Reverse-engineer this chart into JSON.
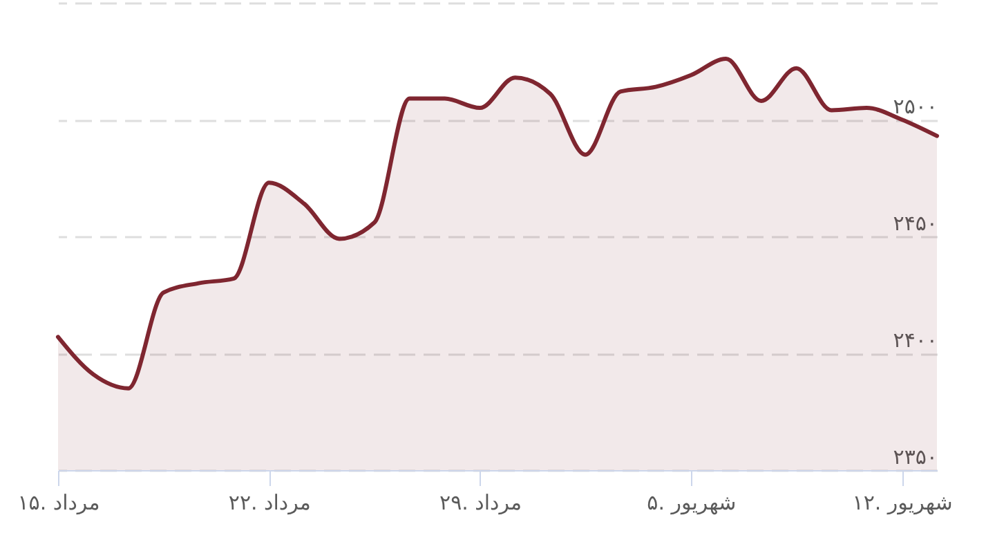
{
  "chart_data": {
    "type": "area",
    "categories": [
      "۱۵. مرداد",
      null,
      null,
      null,
      null,
      null,
      "۲۲. مرداد",
      null,
      null,
      null,
      null,
      null,
      "۲۹. مرداد",
      null,
      null,
      null,
      null,
      null,
      "۵. شهریور",
      null,
      null,
      null,
      null,
      null,
      "۱۲. شهریور",
      null
    ],
    "values": [
      2407,
      2391,
      2385,
      2426,
      2430,
      2432,
      2473,
      2464,
      2449,
      2456,
      2509,
      2509,
      2505,
      2518,
      2511,
      2485,
      2512,
      2514,
      2519,
      2526,
      2508,
      2522,
      2504,
      2505,
      2500,
      2493
    ],
    "color": "#7f2630",
    "ylim": [
      2350,
      2550
    ],
    "yticks": [
      {
        "value": 2350,
        "label": "۲۳۵۰"
      },
      {
        "value": 2400,
        "label": "۲۴۰۰"
      },
      {
        "value": 2450,
        "label": "۲۴۵۰"
      },
      {
        "value": 2500,
        "label": "۲۵۰۰"
      },
      {
        "value": 2550,
        "label": null
      }
    ],
    "grid": "y"
  }
}
